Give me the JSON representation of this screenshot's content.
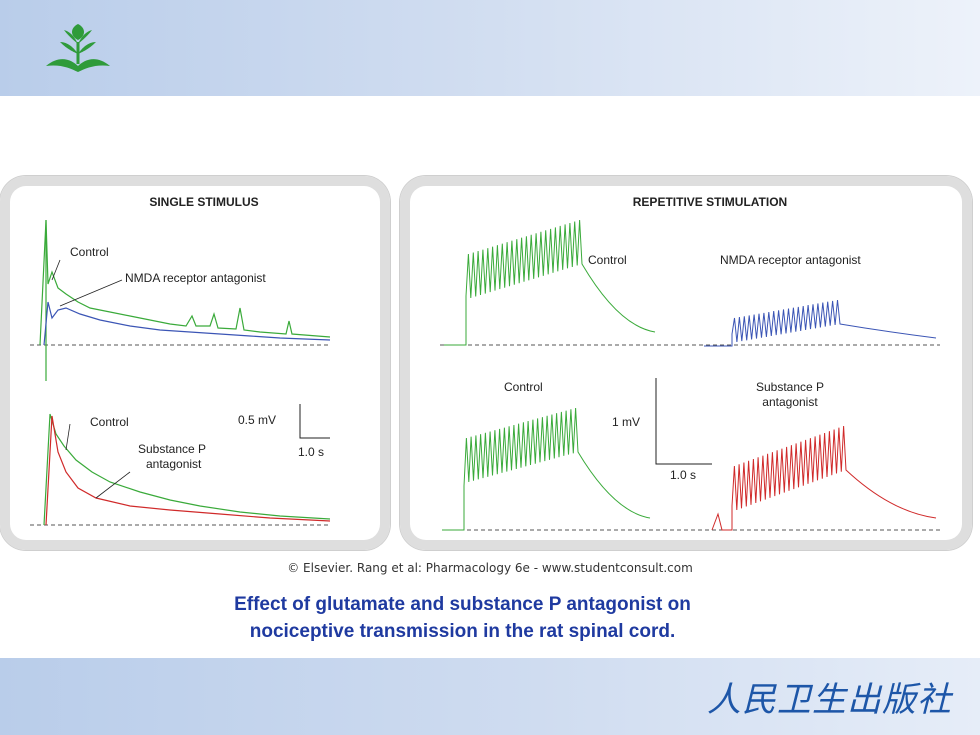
{
  "colors": {
    "control": "#3aaa3a",
    "nmda": "#3b55b5",
    "substance_p": "#d02a2a",
    "caption": "#1f3aa0"
  },
  "figure": {
    "left": {
      "title": "SINGLE STIMULUS",
      "control_top": "Control",
      "nmda": "NMDA receptor antagonist",
      "control_bottom": "Control",
      "sub_p_line1": "Substance P",
      "sub_p_line2": "antagonist",
      "scale_mv": "0.5 mV",
      "scale_s": "1.0 s"
    },
    "right": {
      "title": "REPETITIVE STIMULATION",
      "control_top": "Control",
      "nmda": "NMDA receptor antagonist",
      "control_bottom": "Control",
      "sub_p_line1": "Substance P",
      "sub_p_line2": "antagonist",
      "scale_mv": "1 mV",
      "scale_s": "1.0 s"
    }
  },
  "copyright": "© Elsevier. Rang et al: Pharmacology 6e - www.studentconsult.com",
  "caption_line1": "Effect of glutamate and substance P antagonist on",
  "caption_line2": "nociceptive transmission in the rat spinal cord.",
  "publisher": "人民卫生出版社",
  "icons": [
    "plant-logo-icon"
  ]
}
